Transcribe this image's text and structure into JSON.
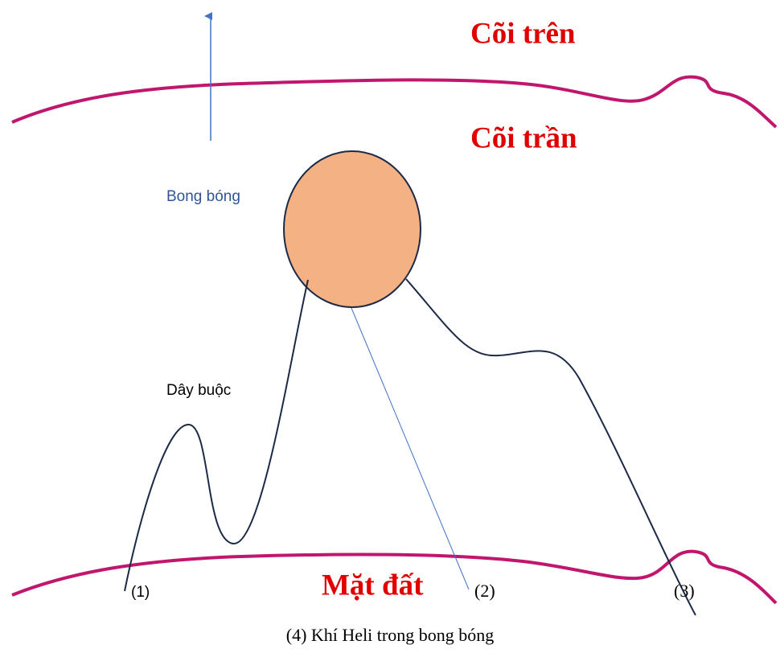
{
  "labels": {
    "upper_realm": "Cõi trên",
    "earthly_realm": "Cõi trần",
    "balloon": "Bong bóng",
    "tether": "Dây buộc",
    "ground": "Mặt đất"
  },
  "points": [
    "(1)",
    "(2)",
    "(3)"
  ],
  "caption": "(4) Khí Heli trong bong bóng"
}
